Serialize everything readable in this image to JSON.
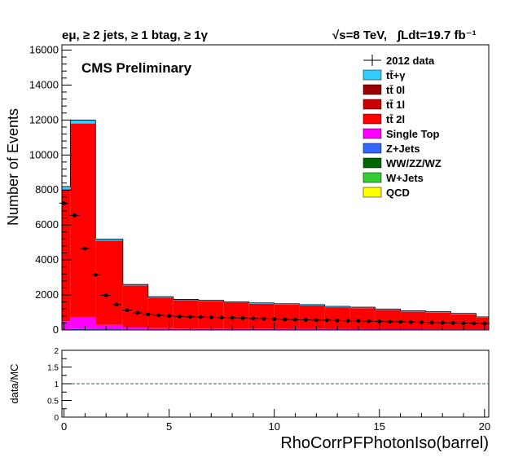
{
  "header": {
    "selection": "eμ, ≥ 2 jets, ≥ 1 btag, ≥ 1γ",
    "energy": "√s=8 TeV,",
    "lumi": "∫Ldt=19.7 fb⁻¹"
  },
  "chart_data": [
    {
      "type": "bar",
      "stacked": true,
      "title": "",
      "annotation": "CMS Preliminary",
      "xlabel": "RhoCorrPFPhotonIso(barrel)",
      "ylabel": "Number of Events",
      "xlim": [
        -0.1,
        20.2
      ],
      "ylim": [
        0,
        16300
      ],
      "x_ticks": [
        0,
        5,
        10,
        15,
        20
      ],
      "y_ticks": [
        0,
        2000,
        4000,
        6000,
        8000,
        10000,
        12000,
        14000,
        16000
      ],
      "legend_position": "top-right",
      "bin_edges": [
        -0.1,
        0.3,
        1.5,
        2.8,
        4.0,
        5.2,
        6.4,
        7.6,
        8.8,
        10.0,
        11.2,
        12.4,
        13.6,
        14.8,
        16.0,
        17.2,
        18.4,
        19.6,
        20.2
      ],
      "series": [
        {
          "name": "QCD",
          "color": "#ffff00",
          "values": [
            0,
            0,
            0,
            0,
            0,
            0,
            0,
            0,
            0,
            0,
            0,
            0,
            0,
            0,
            0,
            0,
            0,
            0
          ]
        },
        {
          "name": "W+Jets",
          "color": "#33cc33",
          "values": [
            0,
            5,
            3,
            2,
            2,
            2,
            2,
            2,
            1,
            1,
            1,
            1,
            1,
            1,
            1,
            1,
            1,
            1
          ]
        },
        {
          "name": "WW/ZZ/WZ",
          "color": "#006600",
          "values": [
            5,
            15,
            10,
            8,
            6,
            5,
            5,
            4,
            4,
            4,
            3,
            3,
            3,
            3,
            3,
            3,
            3,
            3
          ]
        },
        {
          "name": "Z+Jets",
          "color": "#3366ff",
          "values": [
            20,
            60,
            30,
            20,
            15,
            12,
            10,
            10,
            8,
            8,
            7,
            7,
            6,
            6,
            6,
            5,
            5,
            5
          ]
        },
        {
          "name": "Single Top",
          "color": "#ff00ff",
          "values": [
            480,
            650,
            250,
            110,
            80,
            70,
            60,
            55,
            50,
            45,
            45,
            40,
            40,
            35,
            35,
            30,
            30,
            30
          ]
        },
        {
          "name": "tt̄ 2l",
          "color": "#ff0000",
          "values": [
            7495,
            11070,
            4807,
            2400,
            1747,
            1611,
            1573,
            1509,
            1437,
            1392,
            1344,
            1249,
            1200,
            1105,
            1005,
            960,
            861,
            661
          ]
        },
        {
          "name": "tt̄ 1l",
          "color": "#cc0000",
          "values": [
            0,
            0,
            0,
            0,
            0,
            0,
            0,
            0,
            0,
            0,
            0,
            0,
            0,
            0,
            0,
            0,
            0,
            0
          ]
        },
        {
          "name": "tt̄ 0l",
          "color": "#990000",
          "values": [
            0,
            0,
            0,
            0,
            0,
            0,
            0,
            0,
            0,
            0,
            0,
            0,
            0,
            0,
            0,
            0,
            0,
            0
          ]
        },
        {
          "name": "tt̄+γ",
          "color": "#33ccff",
          "values": [
            200,
            200,
            100,
            60,
            50,
            50,
            50,
            20,
            50,
            50,
            50,
            50,
            50,
            50,
            50,
            50,
            50,
            50
          ]
        }
      ],
      "data_points": {
        "name": "2012 data",
        "x": [
          0.0,
          0.5,
          1.0,
          1.5,
          2.0,
          2.5,
          3.0,
          3.5,
          4.0,
          4.5,
          5.0,
          5.5,
          6.0,
          6.5,
          7.0,
          7.5,
          8.0,
          8.5,
          9.0,
          9.5,
          10.0,
          10.5,
          11.0,
          11.5,
          12.0,
          12.5,
          13.0,
          13.5,
          14.0,
          14.5,
          15.0,
          15.5,
          16.0,
          16.5,
          17.0,
          17.5,
          18.0,
          18.5,
          19.0,
          19.5,
          20.0
        ],
        "y": [
          7250,
          6550,
          4650,
          3150,
          1980,
          1450,
          1130,
          980,
          890,
          840,
          800,
          770,
          750,
          740,
          720,
          700,
          690,
          680,
          660,
          640,
          620,
          600,
          590,
          580,
          560,
          560,
          540,
          520,
          520,
          510,
          490,
          470,
          470,
          450,
          440,
          420,
          410,
          400,
          390,
          380,
          370
        ]
      }
    },
    {
      "type": "scatter",
      "title": "",
      "xlabel": "",
      "ylabel": "data/MC",
      "xlim": [
        -0.1,
        20.2
      ],
      "ylim": [
        0,
        2
      ],
      "x_ticks": [
        0,
        5,
        10,
        15,
        20
      ],
      "y_ticks": [
        0,
        0.5,
        1,
        1.5,
        2
      ],
      "reference_line": 1,
      "note": ""
    }
  ]
}
